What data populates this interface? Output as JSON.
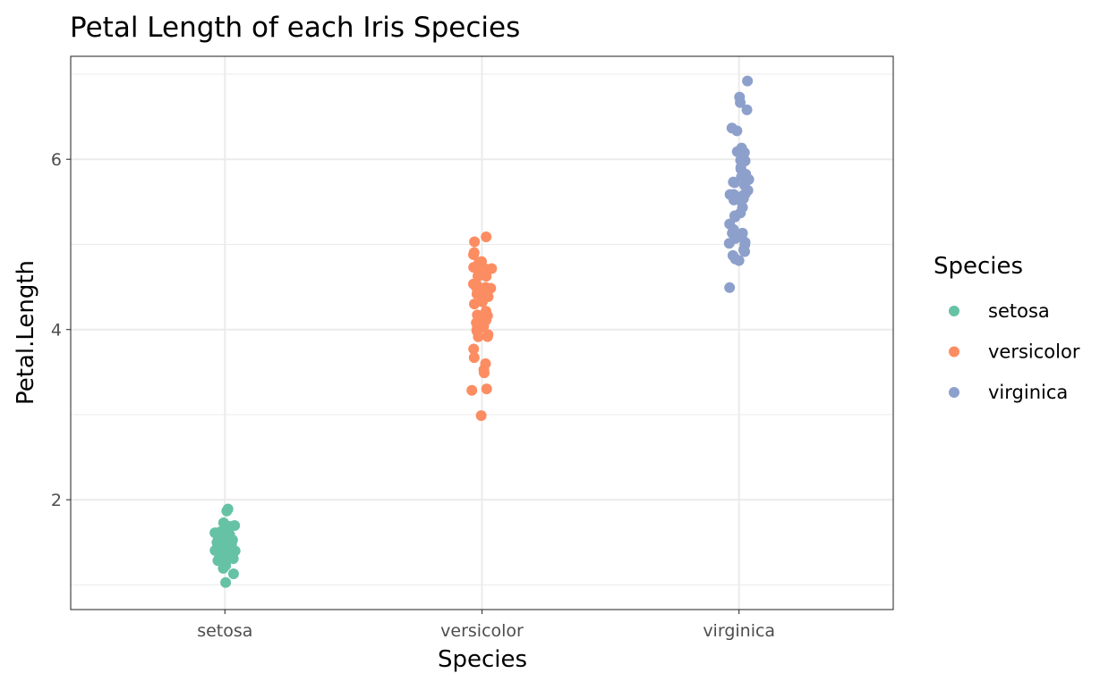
{
  "chart_data": {
    "type": "scatter",
    "subtype": "jitter",
    "title": "Petal Length of each Iris Species",
    "xlabel": "Species",
    "ylabel": "Petal.Length",
    "categories": [
      "setosa",
      "versicolor",
      "virginica"
    ],
    "y_ticks": [
      2,
      4,
      6
    ],
    "y_tick_labels": [
      "2",
      "4",
      "6"
    ],
    "ylim": [
      0.71,
      7.21
    ],
    "grid": true,
    "legend": {
      "title": "Species",
      "placement": "right",
      "entries": [
        "setosa",
        "versicolor",
        "virginica"
      ]
    },
    "colors": {
      "setosa": "#66c2a5",
      "versicolor": "#fc8d62",
      "virginica": "#8da0cb"
    },
    "series": [
      {
        "name": "setosa",
        "values": [
          1.4,
          1.4,
          1.3,
          1.5,
          1.4,
          1.7,
          1.4,
          1.5,
          1.4,
          1.5,
          1.5,
          1.6,
          1.4,
          1.1,
          1.2,
          1.5,
          1.3,
          1.4,
          1.7,
          1.5,
          1.7,
          1.5,
          1.0,
          1.7,
          1.9,
          1.6,
          1.6,
          1.5,
          1.4,
          1.6,
          1.6,
          1.5,
          1.5,
          1.4,
          1.5,
          1.2,
          1.3,
          1.4,
          1.3,
          1.5,
          1.3,
          1.3,
          1.3,
          1.6,
          1.9,
          1.4,
          1.6,
          1.4,
          1.5,
          1.4
        ]
      },
      {
        "name": "versicolor",
        "values": [
          4.7,
          4.5,
          4.9,
          4.0,
          4.6,
          4.5,
          4.7,
          3.3,
          4.6,
          3.9,
          3.5,
          4.2,
          4.0,
          4.7,
          3.6,
          4.4,
          4.5,
          4.1,
          4.5,
          3.9,
          4.8,
          4.0,
          4.9,
          4.7,
          4.3,
          4.4,
          4.8,
          5.0,
          4.5,
          3.5,
          3.8,
          3.7,
          3.9,
          5.1,
          4.5,
          4.5,
          4.7,
          4.4,
          4.1,
          4.0,
          4.4,
          4.6,
          4.0,
          3.3,
          4.2,
          4.2,
          4.2,
          4.3,
          3.0,
          4.1
        ]
      },
      {
        "name": "virginica",
        "values": [
          6.0,
          5.1,
          5.9,
          5.6,
          5.8,
          6.6,
          4.5,
          6.3,
          5.8,
          6.1,
          5.1,
          5.3,
          5.5,
          5.0,
          5.1,
          5.3,
          5.5,
          6.7,
          6.9,
          5.0,
          5.7,
          4.9,
          6.7,
          4.9,
          5.7,
          6.0,
          4.8,
          4.9,
          5.6,
          5.8,
          6.1,
          6.4,
          5.6,
          5.1,
          5.6,
          6.1,
          5.6,
          5.5,
          4.8,
          5.4,
          5.6,
          5.1,
          5.1,
          5.9,
          5.7,
          5.2,
          5.0,
          5.2,
          5.4,
          5.1
        ]
      }
    ]
  }
}
